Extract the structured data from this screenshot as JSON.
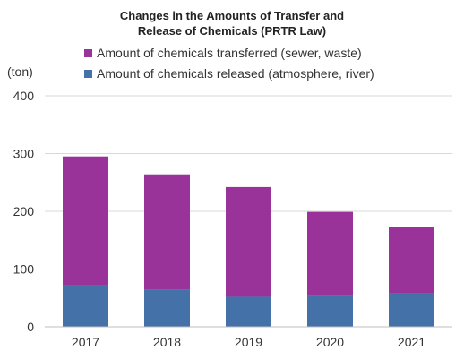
{
  "chart_data": {
    "type": "bar",
    "stacked": true,
    "title": "Changes in the Amounts of Transfer and Release of Chemicals (PRTR Law)",
    "title_lines": [
      "Changes in the Amounts of Transfer and",
      "Release of Chemicals (PRTR Law)"
    ],
    "unit_label": "(ton)",
    "xlabel": "",
    "ylabel": "",
    "categories": [
      "2017",
      "2018",
      "2019",
      "2020",
      "2021"
    ],
    "series": [
      {
        "name": "Amount of chemicals released (atmosphere, river)",
        "color": "#4472a8",
        "values": [
          72,
          64,
          52,
          53,
          58
        ]
      },
      {
        "name": "Amount of chemicals transferred (sewer, waste)",
        "color": "#993399",
        "values": [
          223,
          200,
          190,
          146,
          115
        ]
      }
    ],
    "legend_order": [
      1,
      0
    ],
    "ylim": [
      0,
      400
    ],
    "yticks": [
      0,
      100,
      200,
      300,
      400
    ],
    "grid": true,
    "legend_position": "top"
  }
}
